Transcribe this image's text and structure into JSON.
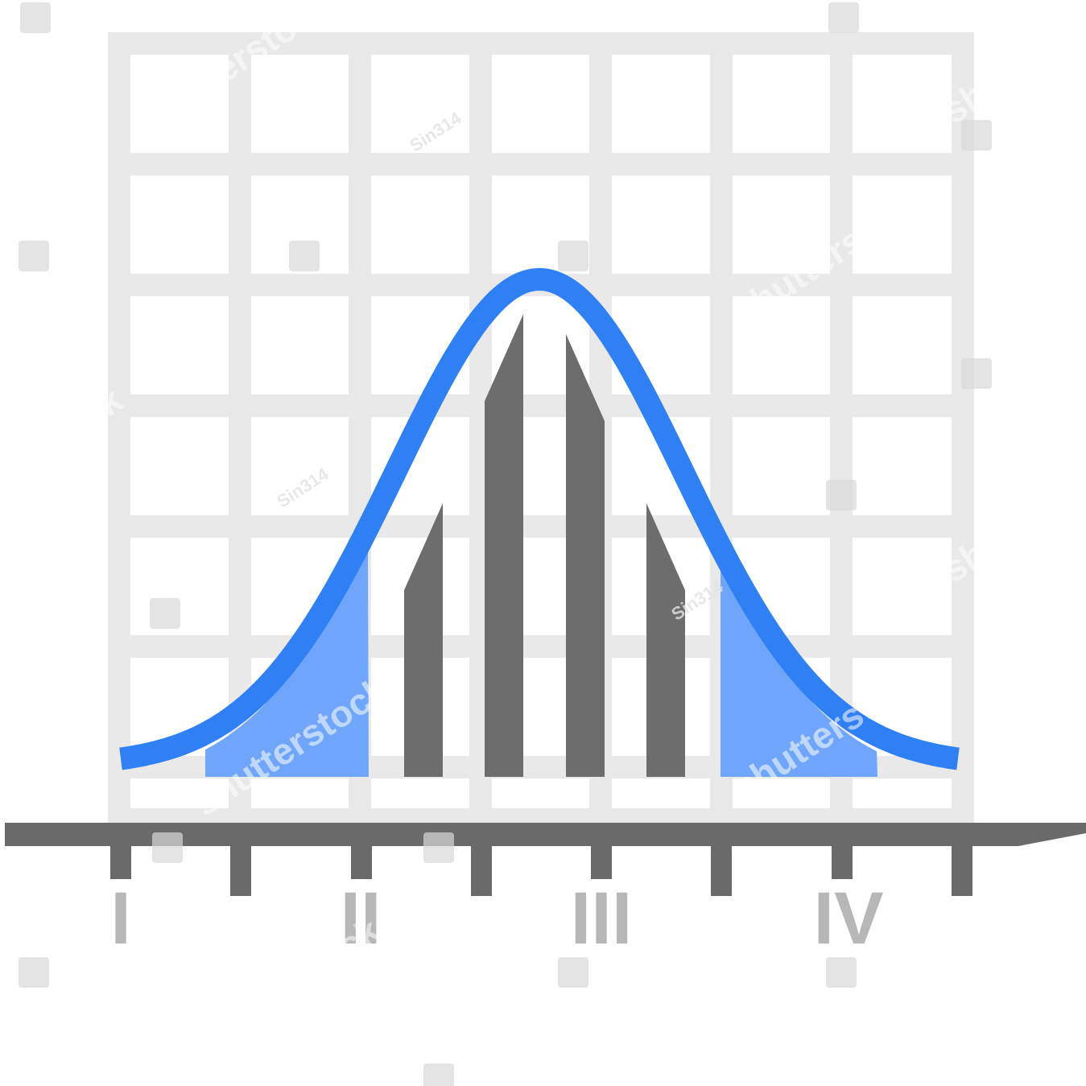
{
  "chart_data": {
    "type": "bar",
    "title": "",
    "xlabel": "",
    "ylabel": "",
    "grid": true,
    "categories": [
      "1",
      "2",
      "3",
      "4"
    ],
    "values": [
      0.55,
      0.93,
      0.89,
      0.55
    ],
    "curve": {
      "kind": "normal",
      "color": "#2f7ff5"
    },
    "tail_fill_color": "#6fa6fb",
    "bar_color": "#6d6d6d",
    "grid_color": "#e9e9e9",
    "axis_color": "#6a6a6a",
    "axis_labels": [
      "I",
      "II",
      "III",
      "IV"
    ]
  },
  "watermark": {
    "brand": "shutterstock",
    "contributor": "Sin314"
  }
}
